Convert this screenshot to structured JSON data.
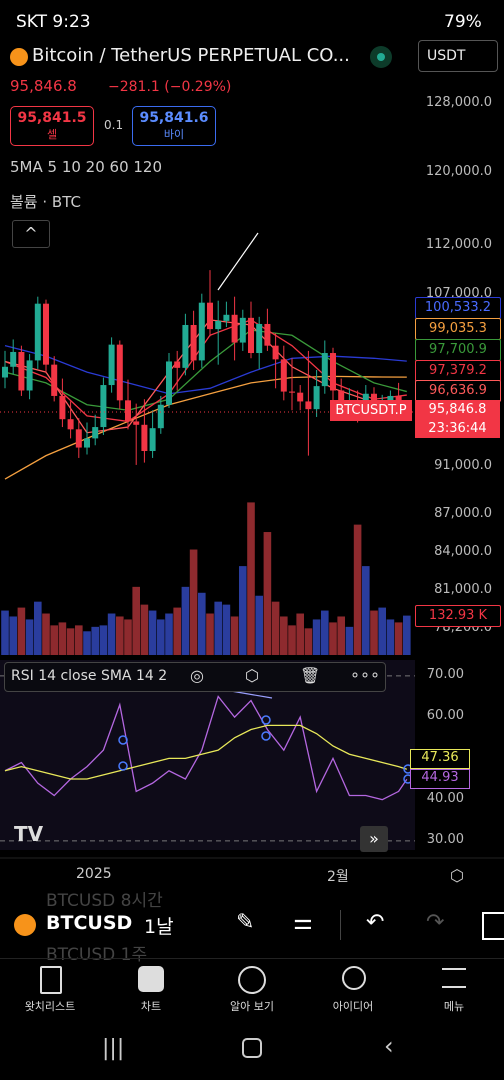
{
  "status_bar": {
    "carrier_time": "SKT 9:23",
    "battery": "79%"
  },
  "header": {
    "title": "Bitcoin / TetherUS PERPETUAL CO...",
    "currency": "USDT",
    "price": "95,846.8",
    "change": "−281.1 (−0.29%)",
    "sell_price": "95,841.5",
    "sell_label": "셀",
    "spread": "0.1",
    "buy_price": "95,841.6",
    "buy_label": "바이",
    "ma_legend": "5MA 5 10 20 60 120",
    "volume_legend": "볼륨 · BTC"
  },
  "chart": {
    "type": "candlestick",
    "log": true,
    "ylim": [
      76300,
      131500
    ],
    "yticks": [
      {
        "value": 128000,
        "label": "128,000.0"
      },
      {
        "value": 120000,
        "label": "120,000.0"
      },
      {
        "value": 112000,
        "label": "112,000.0"
      },
      {
        "value": 107000,
        "label": "107,000.0"
      },
      {
        "value": 91000,
        "label": "91,000.0"
      },
      {
        "value": 87000,
        "label": "87,000.0"
      },
      {
        "value": 84000,
        "label": "84,000.0"
      },
      {
        "value": 81000,
        "label": "81,000.0"
      },
      {
        "value": 78200,
        "label": "78,200.0"
      }
    ],
    "up_color": "#22ab94",
    "down_color": "#f23645",
    "open": [
      99000,
      100000,
      101400,
      97800,
      100600,
      106100,
      100200,
      97300,
      95200,
      94300,
      92700,
      93500,
      94500,
      98300,
      102100,
      96900,
      95000,
      94700,
      92400,
      94400,
      96500,
      100500,
      99900,
      104000,
      100600,
      106200,
      103600,
      104400,
      105000,
      102300,
      104700,
      101300,
      104100,
      102000,
      100700,
      97700,
      97600,
      96800,
      96100,
      98200,
      101300,
      97800,
      96500,
      96600,
      96200,
      97500,
      95800,
      96700,
      97300,
      95700
    ],
    "high": [
      101500,
      102600,
      102000,
      101200,
      106800,
      106500,
      101000,
      98900,
      96800,
      95300,
      94900,
      95600,
      99000,
      102800,
      102500,
      98800,
      96600,
      97000,
      96000,
      97300,
      101300,
      101500,
      105100,
      105400,
      107100,
      109500,
      106400,
      106300,
      106800,
      105500,
      106300,
      104800,
      105600,
      103200,
      102000,
      100800,
      98300,
      101500,
      99700,
      102500,
      101800,
      98900,
      98000,
      97800,
      98300,
      98100,
      97400,
      97800,
      98500,
      96800
    ],
    "low": [
      98000,
      99300,
      97300,
      97000,
      99800,
      99400,
      96800,
      94500,
      93500,
      91800,
      92100,
      92900,
      93800,
      97600,
      96100,
      94300,
      91200,
      91400,
      91800,
      93900,
      96200,
      97800,
      99200,
      99700,
      99900,
      102900,
      100200,
      103800,
      100600,
      101500,
      100800,
      99800,
      101500,
      98000,
      96900,
      96000,
      96000,
      92000,
      95400,
      97500,
      96300,
      95800,
      95400,
      94900,
      95800,
      95300,
      95500,
      96000,
      95200,
      95300
    ],
    "close": [
      100000,
      101400,
      97800,
      100600,
      106100,
      100200,
      97300,
      95200,
      94300,
      92700,
      93500,
      94500,
      98300,
      102100,
      96900,
      95000,
      94700,
      92400,
      94400,
      96500,
      100500,
      99900,
      104000,
      100600,
      106200,
      103600,
      104400,
      105000,
      102300,
      104700,
      101300,
      104100,
      102000,
      100700,
      97700,
      97600,
      96800,
      96100,
      98200,
      101300,
      97800,
      96500,
      96600,
      96200,
      97500,
      95800,
      96700,
      97300,
      95700,
      95846.8
    ],
    "symbol_label": "BTCUSDT.P",
    "last_price_label": "95,846.8",
    "countdown": "23:36:44",
    "moving_averages": [
      {
        "name": "60",
        "color": "#2a3bd4",
        "x": [
          0,
          5,
          10,
          15,
          20,
          25,
          30,
          35,
          40,
          45,
          49
        ],
        "values": [
          102000,
          101000,
          99500,
          98500,
          97500,
          98000,
          99500,
          100800,
          101000,
          100800,
          100533.2
        ],
        "last_label": "100,533.2"
      },
      {
        "name": "120",
        "color": "#f5a040",
        "x": [
          0,
          5,
          10,
          15,
          20,
          25,
          30,
          35,
          40,
          45,
          49
        ],
        "values": [
          90000,
          92000,
          93500,
          95000,
          96500,
          97500,
          98500,
          99000,
          99100,
          99050,
          99035.3
        ],
        "last_label": "99,035.3"
      },
      {
        "name": "20",
        "color": "#3a9a3a",
        "x": [
          0,
          5,
          10,
          15,
          20,
          25,
          30,
          35,
          40,
          45,
          49
        ],
        "values": [
          99500,
          98500,
          96500,
          96000,
          97000,
          100500,
          103500,
          103000,
          100500,
          98500,
          97700.9
        ],
        "last_label": "97,700.9"
      },
      {
        "name": "10",
        "color": "#f23645",
        "x": [
          0,
          5,
          10,
          15,
          20,
          25,
          30,
          35,
          40,
          45,
          49
        ],
        "values": [
          100500,
          99000,
          95500,
          95000,
          97500,
          103000,
          104500,
          102000,
          98500,
          97000,
          97379.2
        ],
        "last_label": "97,379.2"
      },
      {
        "name": "5",
        "color": "#ff5a5a",
        "x": [
          0,
          5,
          10,
          15,
          20,
          25,
          30,
          35,
          40,
          45,
          49
        ],
        "values": [
          100500,
          99500,
          94000,
          94500,
          99500,
          104500,
          104000,
          100000,
          98000,
          96700,
          96636.9
        ],
        "last_label": "96,636.9"
      }
    ],
    "volume": {
      "ylim": [
        0,
        540
      ],
      "up_color": "#2a3d9e",
      "down_color": "#8e2a2e",
      "values": [
        150,
        130,
        160,
        120,
        180,
        140,
        100,
        110,
        90,
        100,
        80,
        95,
        100,
        140,
        130,
        120,
        230,
        170,
        150,
        120,
        140,
        160,
        230,
        356,
        210,
        140,
        180,
        170,
        130,
        300,
        515,
        200,
        415,
        180,
        130,
        100,
        140,
        90,
        120,
        150,
        110,
        130,
        95,
        440,
        300,
        150,
        160,
        120,
        110,
        132.93
      ],
      "last_label": "132.93 K"
    }
  },
  "rsi": {
    "legend": "RSI 14 close SMA 14 2",
    "ylim": [
      27.8,
      71.9
    ],
    "yticks": [
      {
        "value": 70,
        "label": "70.00"
      },
      {
        "value": 60,
        "label": "60.00"
      },
      {
        "value": 40,
        "label": "40.00"
      },
      {
        "value": 30,
        "label": "30.00"
      }
    ],
    "x": [
      0,
      2,
      4,
      6,
      8,
      10,
      12,
      14,
      16,
      18,
      20,
      22,
      24,
      26,
      28,
      30,
      32,
      34,
      36,
      38,
      40,
      42,
      44,
      46,
      48,
      49
    ],
    "series": [
      {
        "name": "RSI",
        "color": "#b467e0",
        "values": [
          47,
          49,
          44,
          41,
          45,
          48,
          52,
          63,
          42,
          44,
          47,
          45,
          52,
          65,
          60,
          64,
          57,
          52,
          60,
          42,
          50,
          41,
          41,
          40,
          42,
          44.93
        ],
        "last_label": "44.93"
      },
      {
        "name": "SMA",
        "color": "#e8e85a",
        "values": [
          47,
          48,
          47,
          46,
          45,
          45,
          46,
          47,
          48,
          49,
          50,
          50,
          51,
          52,
          55,
          57,
          58,
          58,
          58,
          56,
          53,
          51,
          50,
          49,
          48,
          47.36
        ],
        "last_label": "47.36"
      }
    ]
  },
  "time_axis": {
    "labels": [
      "2025",
      "2월"
    ]
  },
  "toolbar": {
    "symbol": "BTCUSD",
    "interval": "1날",
    "above": "BTCUSD 8시간",
    "below": "BTCUSD 1주"
  },
  "nav": [
    "왓치리스트",
    "차트",
    "알아 보기",
    "아이디어",
    "메뉴"
  ]
}
